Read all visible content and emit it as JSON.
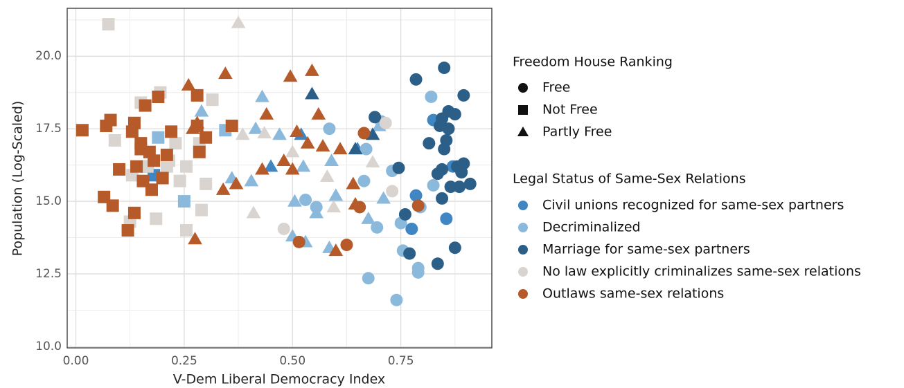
{
  "chart_data": {
    "type": "scatter",
    "x_label": "V-Dem Liberal Democracy Index",
    "y_label": "Population (Log-Scaled)",
    "xlim": [
      -0.02,
      0.96
    ],
    "ylim": [
      9.95,
      21.65
    ],
    "xticks": [
      {
        "value": 0,
        "label": "0.00"
      },
      0.25,
      {
        "value": 0.5,
        "label": "0.50"
      },
      0.75
    ],
    "yticks": [
      {
        "value": 10,
        "label": "10.0"
      },
      12.5,
      {
        "value": 15,
        "label": "15.0"
      },
      17.5,
      {
        "value": 20,
        "label": "20.0"
      }
    ],
    "grid": true,
    "minor_grid": true,
    "shape_legend": {
      "title": "Freedom House Ranking",
      "entries": [
        {
          "name": "Free",
          "shape": "circle"
        },
        {
          "name": "Not Free",
          "shape": "square"
        },
        {
          "name": "Partly Free",
          "shape": "triangle"
        }
      ]
    },
    "legend_title": "Legal Status of Same-Sex Relations",
    "series": [
      {
        "name": "Civil unions recognized for same-sex partners",
        "color": "#3f86c2",
        "x": [
          0.18,
          0.165,
          0.45,
          0.52,
          0.65,
          0.775,
          0.785,
          0.855,
          0.87,
          0.825
        ],
        "values": [
          15.9,
          16.2,
          16.2,
          17.3,
          16.8,
          14.05,
          15.2,
          14.4,
          16.2,
          17.8
        ],
        "freedom": [
          "Not Free",
          "Not Free",
          "Partly Free",
          "Partly Free",
          "Partly Free",
          "Free",
          "Free",
          "Free",
          "Free",
          "Free"
        ]
      },
      {
        "name": "Decriminalized",
        "color": "#8bb9dc",
        "x": [
          0.19,
          0.25,
          0.345,
          0.29,
          0.36,
          0.405,
          0.415,
          0.43,
          0.47,
          0.5,
          0.505,
          0.525,
          0.53,
          0.555,
          0.585,
          0.59,
          0.6,
          0.675,
          0.7,
          0.71,
          0.53,
          0.555,
          0.585,
          0.665,
          0.67,
          0.675,
          0.695,
          0.705,
          0.73,
          0.74,
          0.75,
          0.755,
          0.79,
          0.79,
          0.795,
          0.82,
          0.825
        ],
        "values": [
          17.2,
          15.0,
          17.45,
          18.1,
          15.8,
          15.7,
          17.5,
          18.6,
          17.3,
          13.8,
          15.0,
          16.2,
          13.6,
          14.6,
          13.4,
          16.4,
          15.2,
          14.4,
          17.6,
          15.1,
          15.05,
          14.8,
          17.5,
          15.7,
          16.8,
          12.35,
          14.1,
          17.75,
          16.05,
          11.6,
          14.25,
          13.3,
          12.7,
          12.55,
          14.8,
          18.6,
          15.55
        ],
        "freedom": [
          "Not Free",
          "Not Free",
          "Not Free",
          "Partly Free",
          "Partly Free",
          "Partly Free",
          "Partly Free",
          "Partly Free",
          "Partly Free",
          "Partly Free",
          "Partly Free",
          "Partly Free",
          "Partly Free",
          "Partly Free",
          "Partly Free",
          "Partly Free",
          "Partly Free",
          "Partly Free",
          "Partly Free",
          "Partly Free",
          "Free",
          "Free",
          "Free",
          "Free",
          "Free",
          "Free",
          "Free",
          "Free",
          "Free",
          "Free",
          "Free",
          "Free",
          "Free",
          "Free",
          "Free",
          "Free",
          "Free"
        ]
      },
      {
        "name": "Marriage for same-sex partners",
        "color": "#2c5f88",
        "x": [
          0.545,
          0.645,
          0.685,
          0.69,
          0.745,
          0.76,
          0.77,
          0.785,
          0.815,
          0.835,
          0.84,
          0.845,
          0.845,
          0.845,
          0.85,
          0.85,
          0.855,
          0.86,
          0.86,
          0.865,
          0.875,
          0.875,
          0.88,
          0.885,
          0.89,
          0.895,
          0.895,
          0.91,
          0.835
        ],
        "values": [
          18.7,
          16.8,
          17.3,
          17.9,
          16.15,
          14.55,
          13.2,
          19.2,
          17.0,
          12.85,
          17.6,
          15.1,
          16.1,
          17.85,
          19.6,
          16.8,
          17.1,
          18.1,
          17.5,
          15.5,
          18.0,
          13.4,
          16.2,
          15.5,
          16.0,
          18.65,
          16.3,
          15.6,
          15.95
        ],
        "freedom": [
          "Partly Free",
          "Partly Free",
          "Partly Free",
          "Free",
          "Free",
          "Free",
          "Free",
          "Free",
          "Free",
          "Free",
          "Free",
          "Free",
          "Free",
          "Free",
          "Free",
          "Free",
          "Free",
          "Free",
          "Free",
          "Free",
          "Free",
          "Free",
          "Free",
          "Free",
          "Free",
          "Free",
          "Free",
          "Free",
          "Free"
        ]
      },
      {
        "name": "No law explicitly criminalizes same-sex relations",
        "color": "#d9d4cf",
        "x": [
          0.075,
          0.09,
          0.13,
          0.125,
          0.15,
          0.165,
          0.185,
          0.195,
          0.215,
          0.23,
          0.24,
          0.255,
          0.255,
          0.285,
          0.29,
          0.3,
          0.315,
          0.21,
          0.375,
          0.385,
          0.41,
          0.435,
          0.5,
          0.58,
          0.685,
          0.595,
          0.48,
          0.73,
          0.715
        ],
        "values": [
          21.1,
          17.1,
          15.9,
          14.3,
          18.4,
          16.2,
          14.4,
          18.75,
          16.4,
          17.0,
          15.7,
          16.2,
          14.0,
          17.0,
          14.7,
          15.6,
          18.5,
          16.2,
          21.15,
          17.3,
          14.6,
          17.35,
          16.7,
          15.85,
          16.35,
          14.8,
          14.05,
          15.35,
          17.7
        ],
        "freedom": [
          "Not Free",
          "Not Free",
          "Not Free",
          "Not Free",
          "Not Free",
          "Not Free",
          "Not Free",
          "Not Free",
          "Not Free",
          "Not Free",
          "Not Free",
          "Not Free",
          "Not Free",
          "Not Free",
          "Not Free",
          "Not Free",
          "Not Free",
          "Not Free",
          "Partly Free",
          "Partly Free",
          "Partly Free",
          "Partly Free",
          "Partly Free",
          "Partly Free",
          "Partly Free",
          "Partly Free",
          "Free",
          "Free",
          "Free"
        ]
      },
      {
        "name": "Outlaws same-sex relations",
        "color": "#b65a29",
        "x": [
          0.015,
          0.07,
          0.08,
          0.065,
          0.085,
          0.1,
          0.12,
          0.13,
          0.135,
          0.14,
          0.135,
          0.15,
          0.15,
          0.155,
          0.16,
          0.17,
          0.175,
          0.18,
          0.19,
          0.2,
          0.21,
          0.22,
          0.28,
          0.28,
          0.285,
          0.3,
          0.36,
          0.26,
          0.27,
          0.275,
          0.28,
          0.34,
          0.345,
          0.37,
          0.43,
          0.44,
          0.48,
          0.495,
          0.5,
          0.51,
          0.535,
          0.545,
          0.56,
          0.57,
          0.6,
          0.61,
          0.64,
          0.645,
          0.515,
          0.625,
          0.655,
          0.665,
          0.79
        ],
        "values": [
          17.45,
          17.6,
          17.8,
          15.15,
          14.85,
          16.1,
          14.0,
          17.4,
          17.7,
          16.2,
          14.6,
          17.0,
          16.8,
          15.7,
          18.3,
          16.7,
          15.4,
          16.4,
          18.6,
          15.8,
          16.6,
          17.4,
          17.6,
          18.65,
          16.7,
          17.2,
          17.6,
          19.0,
          17.5,
          13.7,
          17.7,
          15.4,
          19.4,
          15.6,
          16.1,
          18.0,
          16.4,
          19.3,
          16.1,
          17.4,
          17.0,
          19.5,
          18.0,
          16.9,
          13.3,
          16.8,
          15.6,
          14.9,
          13.6,
          13.5,
          14.8,
          17.35,
          14.85
        ],
        "freedom": [
          "Not Free",
          "Not Free",
          "Not Free",
          "Not Free",
          "Not Free",
          "Not Free",
          "Not Free",
          "Not Free",
          "Not Free",
          "Not Free",
          "Not Free",
          "Not Free",
          "Not Free",
          "Not Free",
          "Not Free",
          "Not Free",
          "Not Free",
          "Not Free",
          "Not Free",
          "Not Free",
          "Not Free",
          "Not Free",
          "Not Free",
          "Not Free",
          "Not Free",
          "Not Free",
          "Not Free",
          "Partly Free",
          "Partly Free",
          "Partly Free",
          "Partly Free",
          "Partly Free",
          "Partly Free",
          "Partly Free",
          "Partly Free",
          "Partly Free",
          "Partly Free",
          "Partly Free",
          "Partly Free",
          "Partly Free",
          "Partly Free",
          "Partly Free",
          "Partly Free",
          "Partly Free",
          "Partly Free",
          "Partly Free",
          "Partly Free",
          "Partly Free",
          "Free",
          "Free",
          "Free",
          "Free",
          "Free"
        ]
      }
    ]
  }
}
